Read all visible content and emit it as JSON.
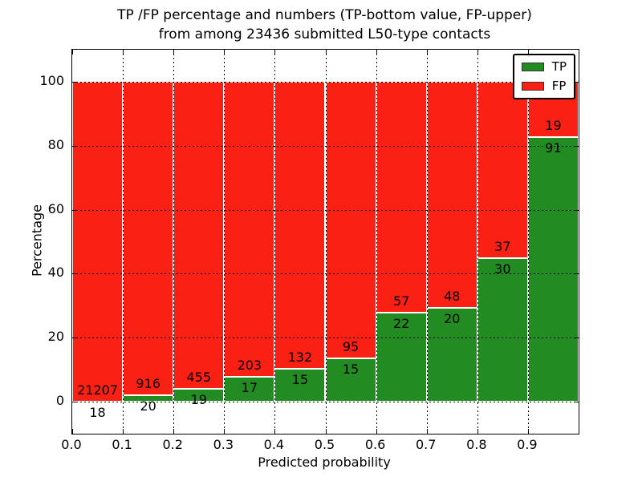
{
  "chart_data": {
    "type": "bar",
    "subtype": "stacked-100-percent",
    "title": "TP /FP percentage and numbers (TP-bottom value, FP-upper)",
    "subtitle": "from among 23436 submitted L50-type contacts",
    "xlabel": "Predicted probability",
    "ylabel": "Percentage",
    "total_submitted": 23436,
    "bin_edges": [
      0.0,
      0.1,
      0.2,
      0.3,
      0.4,
      0.5,
      0.6,
      0.7,
      0.8,
      0.9,
      1.0
    ],
    "series": [
      {
        "name": "TP",
        "color": "#228b22",
        "counts": [
          18,
          20,
          19,
          17,
          15,
          15,
          22,
          20,
          30,
          91
        ]
      },
      {
        "name": "FP",
        "color": "#fa2014",
        "counts": [
          21207,
          916,
          455,
          203,
          132,
          95,
          57,
          48,
          37,
          19
        ]
      }
    ],
    "tp_percent_of_bin": [
      0.08,
      2.14,
      4.01,
      7.73,
      10.2,
      13.64,
      27.85,
      29.41,
      44.78,
      82.73
    ],
    "x_tick_labels": [
      "0.0",
      "0.1",
      "0.2",
      "0.3",
      "0.4",
      "0.5",
      "0.6",
      "0.7",
      "0.8",
      "0.9"
    ],
    "y_tick_values": [
      0,
      20,
      40,
      60,
      80,
      100
    ],
    "xlim": [
      0.0,
      1.0
    ],
    "ylim": [
      -10,
      110
    ],
    "grid": {
      "visible": true,
      "linestyle": "dotted",
      "color": "#000000"
    },
    "bar_edge_color": "#ffffff",
    "legend": {
      "location": "upper right",
      "entries": [
        "TP",
        "FP"
      ]
    },
    "annotation_rule": "FP count above TP/FP boundary, TP count below boundary"
  }
}
